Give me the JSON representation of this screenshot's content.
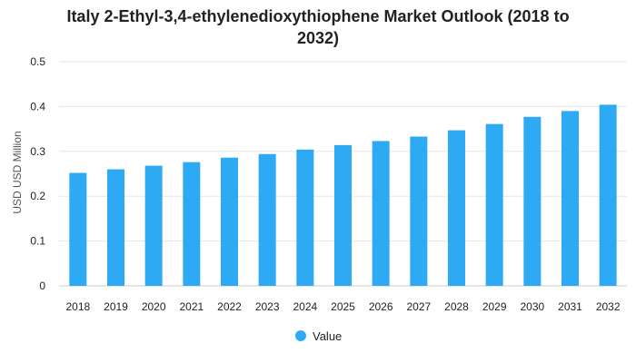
{
  "chart_data": {
    "type": "bar",
    "title_lines": [
      "Italy 2-Ethyl-3,4-ethylenedioxythiophene Market Outlook (2018 to",
      "2032)"
    ],
    "xlabel": "",
    "ylabel": "USD USD Million",
    "categories": [
      "2018",
      "2019",
      "2020",
      "2021",
      "2022",
      "2023",
      "2024",
      "2025",
      "2026",
      "2027",
      "2028",
      "2029",
      "2030",
      "2031",
      "2032"
    ],
    "series": [
      {
        "name": "Value",
        "color": "#2eaaf5",
        "values": [
          0.252,
          0.26,
          0.268,
          0.276,
          0.286,
          0.294,
          0.304,
          0.314,
          0.323,
          0.333,
          0.347,
          0.361,
          0.377,
          0.39,
          0.404
        ]
      }
    ],
    "ylim": [
      0,
      0.5
    ],
    "yticks": [
      "0",
      "0.1",
      "0.2",
      "0.3",
      "0.4",
      "0.5"
    ],
    "grid": true,
    "legend_position": "bottom-center"
  }
}
